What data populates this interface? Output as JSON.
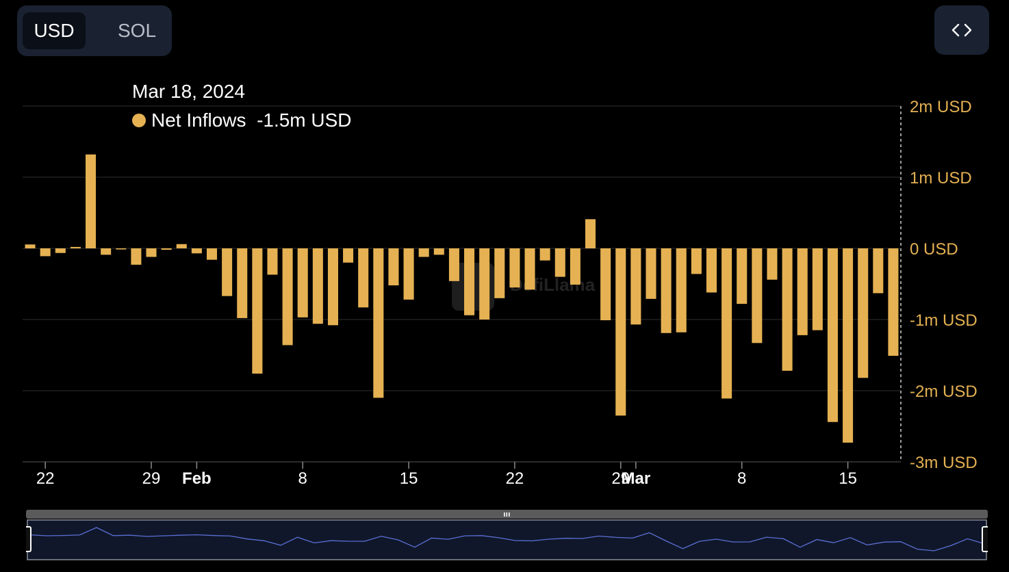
{
  "currency_toggle": {
    "options": [
      "USD",
      "SOL"
    ],
    "selected": "USD"
  },
  "embed_button": {
    "icon": "code-icon"
  },
  "tooltip": {
    "date": "Mar 18, 2024",
    "series_label": "Net Inflows",
    "value": "-1.5m USD"
  },
  "watermark": "DefiLlama",
  "colors": {
    "bar": "#E5B152",
    "axis_text": "#E5B152",
    "background": "#000000",
    "toolbar": "#1a2232",
    "zoom_line": "#5b6fd6"
  },
  "chart_data": {
    "type": "bar",
    "x": [
      "Jan 21",
      "Jan 22",
      "Jan 23",
      "Jan 24",
      "Jan 25",
      "Jan 26",
      "Jan 27",
      "Jan 28",
      "Jan 29",
      "Jan 30",
      "Jan 31",
      "Feb 1",
      "Feb 2",
      "Feb 3",
      "Feb 4",
      "Feb 5",
      "Feb 6",
      "Feb 7",
      "Feb 8",
      "Feb 9",
      "Feb 10",
      "Feb 11",
      "Feb 12",
      "Feb 13",
      "Feb 14",
      "Feb 15",
      "Feb 16",
      "Feb 17",
      "Feb 18",
      "Feb 19",
      "Feb 20",
      "Feb 21",
      "Feb 22",
      "Feb 23",
      "Feb 24",
      "Feb 25",
      "Feb 26",
      "Feb 27",
      "Feb 28",
      "Feb 29",
      "Mar 1",
      "Mar 2",
      "Mar 3",
      "Mar 4",
      "Mar 5",
      "Mar 6",
      "Mar 7",
      "Mar 8",
      "Mar 9",
      "Mar 10",
      "Mar 11",
      "Mar 12",
      "Mar 13",
      "Mar 14",
      "Mar 15",
      "Mar 16",
      "Mar 17",
      "Mar 18"
    ],
    "series": [
      {
        "name": "Net Inflows",
        "unit": "USD",
        "values": [
          55000,
          -110000,
          -65000,
          20000,
          1320000,
          -90000,
          -15000,
          -230000,
          -120000,
          -20000,
          60000,
          -70000,
          -160000,
          -670000,
          -980000,
          -1760000,
          -370000,
          -1360000,
          -970000,
          -1060000,
          -1080000,
          -200000,
          -830000,
          -2100000,
          -520000,
          -720000,
          -120000,
          -90000,
          -460000,
          -940000,
          -1000000,
          -700000,
          -550000,
          -580000,
          -170000,
          -400000,
          -510000,
          410000,
          -1010000,
          -2350000,
          -1070000,
          -710000,
          -1190000,
          -1180000,
          -360000,
          -620000,
          -2110000,
          -780000,
          -1330000,
          -440000,
          -1720000,
          -1220000,
          -1150000,
          -2440000,
          -2730000,
          -1820000,
          -630000,
          -1510000
        ]
      }
    ],
    "y_ticks": [
      "2m USD",
      "1m USD",
      "0 USD",
      "-1m USD",
      "-2m USD",
      "-3m USD"
    ],
    "y_tick_values": [
      2000000,
      1000000,
      0,
      -1000000,
      -2000000,
      -3000000
    ],
    "ylim": [
      -3000000,
      2000000
    ],
    "x_ticks": [
      "22",
      "29",
      "Feb",
      "8",
      "15",
      "22",
      "29",
      "Mar",
      "8",
      "15"
    ],
    "x_tick_dates": [
      "Jan 22",
      "Jan 29",
      "Feb 1",
      "Feb 8",
      "Feb 15",
      "Feb 22",
      "Feb 29",
      "Mar 1",
      "Mar 8",
      "Mar 15"
    ],
    "x_tick_bold": [
      false,
      false,
      true,
      false,
      false,
      false,
      false,
      true,
      false,
      false
    ],
    "grid": true,
    "y_axis_position": "right",
    "legend": "top-left"
  }
}
